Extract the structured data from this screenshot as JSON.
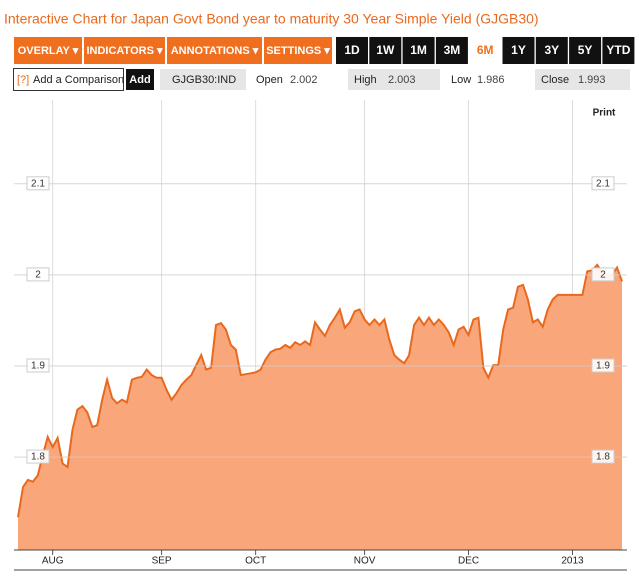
{
  "chart_data": {
    "type": "area",
    "title": "Interactive Chart for Japan Govt Bond year to maturity 30 Year Simple Yield (GJGB30)",
    "print": "Print",
    "categories": [
      null,
      null,
      null,
      null,
      null,
      null,
      null,
      "AUG",
      null,
      null,
      null,
      null,
      null,
      null,
      null,
      null,
      null,
      null,
      null,
      null,
      null,
      null,
      null,
      null,
      null,
      null,
      null,
      null,
      null,
      "SEP",
      null,
      null,
      null,
      null,
      null,
      null,
      null,
      null,
      null,
      null,
      null,
      null,
      null,
      null,
      null,
      null,
      null,
      null,
      "OCT",
      null,
      null,
      null,
      null,
      null,
      null,
      null,
      null,
      null,
      null,
      null,
      null,
      null,
      null,
      null,
      null,
      null,
      null,
      null,
      null,
      null,
      "NOV",
      null,
      null,
      null,
      null,
      null,
      null,
      null,
      null,
      null,
      null,
      null,
      null,
      null,
      null,
      null,
      null,
      null,
      null,
      null,
      null,
      "DEC",
      null,
      null,
      null,
      null,
      null,
      null,
      null,
      null,
      null,
      null,
      null,
      null,
      null,
      null,
      null,
      null,
      null,
      null,
      null,
      null,
      "2013",
      null,
      null,
      null,
      null,
      null,
      null,
      null,
      null,
      null,
      null
    ],
    "values": [
      1.734,
      1.767,
      1.775,
      1.773,
      1.78,
      1.802,
      1.822,
      1.811,
      1.821,
      1.793,
      1.789,
      1.83,
      1.852,
      1.856,
      1.849,
      1.833,
      1.835,
      1.863,
      1.885,
      1.865,
      1.859,
      1.863,
      1.86,
      1.885,
      1.887,
      1.888,
      1.896,
      1.89,
      1.887,
      1.887,
      1.874,
      1.863,
      1.87,
      1.879,
      1.885,
      1.89,
      1.901,
      1.912,
      1.896,
      1.898,
      1.945,
      1.947,
      1.94,
      1.923,
      1.918,
      1.89,
      1.891,
      1.892,
      1.893,
      1.896,
      1.907,
      1.915,
      1.918,
      1.919,
      1.923,
      1.92,
      1.926,
      1.923,
      1.927,
      1.923,
      1.948,
      1.94,
      1.933,
      1.945,
      1.953,
      1.962,
      1.942,
      1.948,
      1.96,
      1.962,
      1.951,
      1.945,
      1.951,
      1.945,
      1.951,
      1.929,
      1.912,
      1.907,
      1.903,
      1.912,
      1.945,
      1.953,
      1.945,
      1.953,
      1.945,
      1.951,
      1.945,
      1.937,
      1.923,
      1.94,
      1.943,
      1.934,
      1.951,
      1.953,
      1.898,
      1.887,
      1.901,
      1.901,
      1.94,
      1.962,
      1.964,
      1.987,
      1.989,
      1.973,
      1.948,
      1.951,
      1.943,
      1.962,
      1.973,
      1.978,
      1.978,
      1.978,
      1.978,
      1.978,
      1.978,
      2.004,
      2.005,
      2.011,
      2.003,
      2.0,
      2.0,
      2.008,
      1.993
    ],
    "color": "#e8691e",
    "fill": "#f9a77a",
    "ylim": [
      1.698,
      2.192
    ],
    "yticks": [
      1.8,
      1.9,
      2,
      2.1
    ],
    "grid": true
  },
  "toolbar": {
    "menus": [
      "OVERLAY ▾",
      "INDICATORS ▾",
      "ANNOTATIONS ▾",
      "SETTINGS ▾"
    ],
    "ranges": [
      "1D",
      "1W",
      "1M",
      "3M",
      "6M",
      "1Y",
      "3Y",
      "5Y",
      "YTD"
    ],
    "selected_range": 4
  },
  "quote_bar": {
    "help": "[?]",
    "placeholder": "Add a Comparison",
    "button": "Add",
    "ticker": "GJGB30:IND",
    "fields": [
      {
        "label": "Open",
        "value": 2.002
      },
      {
        "label": "High",
        "value": 2.003
      },
      {
        "label": "Low",
        "value": 1.986
      },
      {
        "label": "Close",
        "value": 1.993
      }
    ]
  }
}
